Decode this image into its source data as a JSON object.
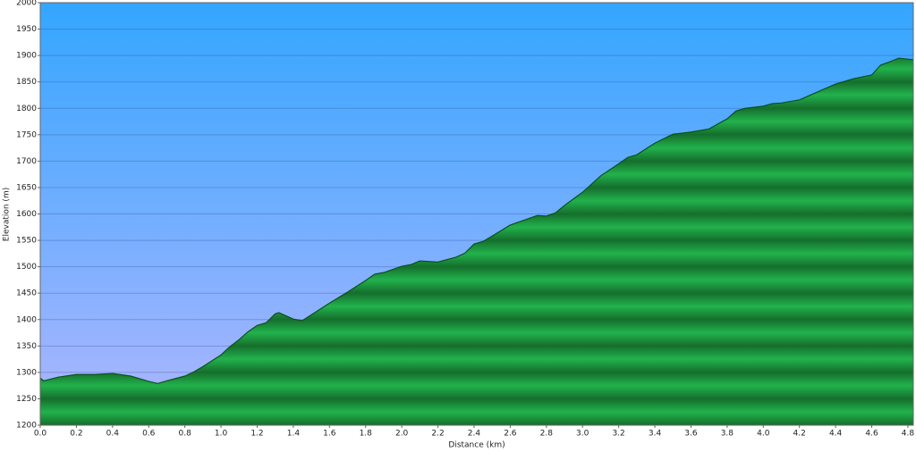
{
  "chart_data": {
    "type": "area",
    "xlabel": "Distance   (km)",
    "ylabel": "Elevation (m)",
    "x": [
      0.0,
      0.02,
      0.1,
      0.2,
      0.3,
      0.4,
      0.5,
      0.6,
      0.65,
      0.7,
      0.8,
      0.85,
      0.9,
      1.0,
      1.05,
      1.1,
      1.15,
      1.2,
      1.25,
      1.3,
      1.32,
      1.4,
      1.45,
      1.5,
      1.6,
      1.7,
      1.8,
      1.85,
      1.9,
      2.0,
      2.05,
      2.1,
      2.2,
      2.3,
      2.35,
      2.4,
      2.45,
      2.5,
      2.6,
      2.7,
      2.75,
      2.8,
      2.85,
      2.9,
      3.0,
      3.1,
      3.2,
      3.25,
      3.3,
      3.4,
      3.5,
      3.6,
      3.7,
      3.8,
      3.85,
      3.9,
      4.0,
      4.05,
      4.1,
      4.2,
      4.3,
      4.4,
      4.5,
      4.6,
      4.65,
      4.7,
      4.75,
      4.83
    ],
    "values": [
      1289,
      1284,
      1291,
      1296,
      1296,
      1298,
      1293,
      1283,
      1279,
      1284,
      1293,
      1301,
      1311,
      1333,
      1349,
      1362,
      1377,
      1389,
      1394,
      1411,
      1413,
      1401,
      1398,
      1409,
      1431,
      1452,
      1474,
      1486,
      1489,
      1501,
      1504,
      1511,
      1509,
      1518,
      1526,
      1543,
      1548,
      1558,
      1579,
      1591,
      1597,
      1596,
      1602,
      1616,
      1641,
      1672,
      1695,
      1707,
      1712,
      1734,
      1751,
      1755,
      1761,
      1780,
      1795,
      1800,
      1804,
      1809,
      1810,
      1816,
      1831,
      1846,
      1856,
      1863,
      1882,
      1888,
      1895,
      1892
    ],
    "color": "#1fae48",
    "line_color": "#0d4f1e",
    "xlim": [
      0,
      4.83
    ],
    "ylim": [
      1200,
      2000
    ],
    "xticks": [
      {
        "value": 0,
        "label": "0.0"
      },
      0.2,
      0.4,
      0.6,
      0.8,
      {
        "value": 1,
        "label": "1.0"
      },
      1.2,
      1.4,
      1.6,
      1.8,
      {
        "value": 2,
        "label": "2.0"
      },
      2.2,
      2.4,
      2.6,
      2.8,
      {
        "value": 3,
        "label": "3.0"
      },
      3.2,
      3.4,
      3.6,
      3.8,
      {
        "value": 4,
        "label": "4.0"
      },
      4.2,
      4.4,
      4.6,
      4.8
    ],
    "yticks": [
      1200,
      1250,
      1300,
      1350,
      1400,
      1450,
      1500,
      1550,
      1600,
      1650,
      1700,
      1750,
      1800,
      1850,
      1900,
      1950,
      2000
    ],
    "grid": true
  }
}
